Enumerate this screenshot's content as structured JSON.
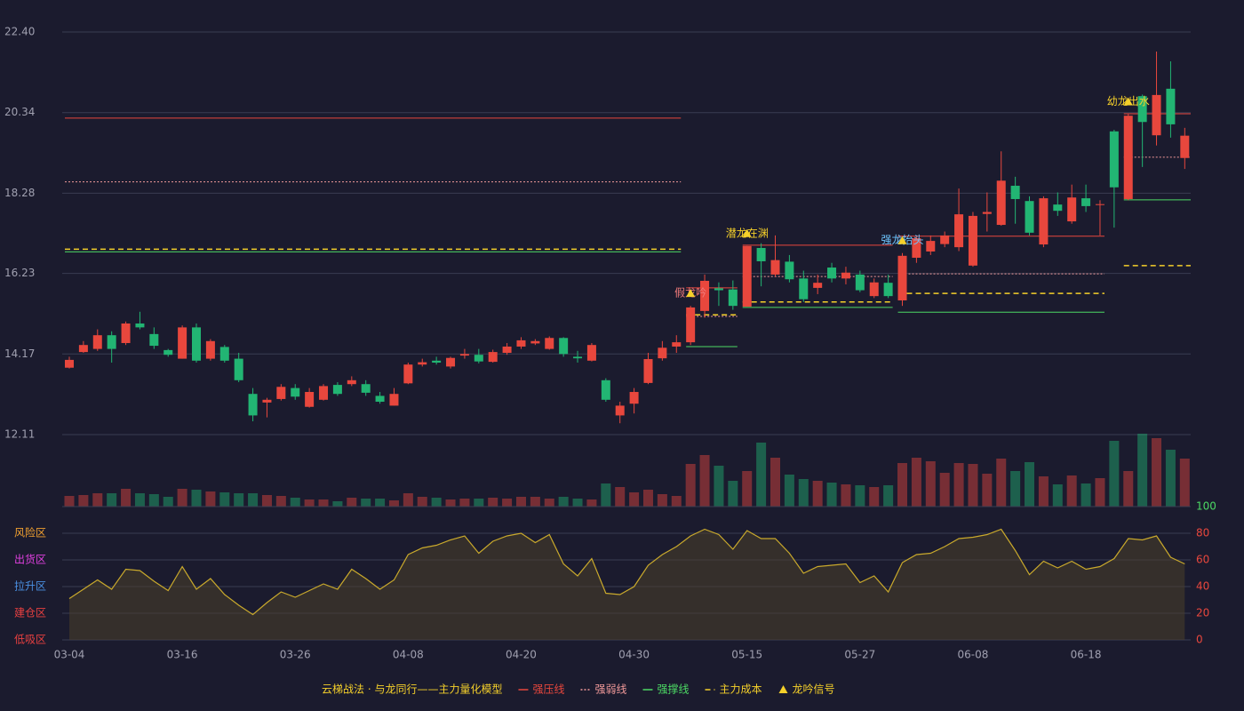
{
  "chart_data": [
    {
      "type": "candlestick",
      "title": "云梯战法 · 与龙同行——主力量化模型",
      "categories": [
        "03-04",
        null,
        null,
        null,
        null,
        null,
        null,
        null,
        "03-16",
        null,
        null,
        null,
        null,
        null,
        null,
        null,
        "03-26",
        null,
        null,
        null,
        null,
        null,
        null,
        null,
        "04-08",
        null,
        null,
        null,
        null,
        null,
        null,
        null,
        "04-20",
        null,
        null,
        null,
        null,
        null,
        null,
        null,
        "04-30",
        null,
        null,
        null,
        null,
        null,
        null,
        null,
        "05-15",
        null,
        null,
        null,
        null,
        null,
        null,
        null,
        "05-27",
        null,
        null,
        null,
        null,
        null,
        null,
        null,
        "06-08",
        null,
        null,
        null,
        null,
        null,
        null,
        null,
        "06-18",
        null,
        null,
        null,
        null,
        null,
        null,
        null
      ],
      "open": [
        13.82,
        14.22,
        14.3,
        14.65,
        14.45,
        14.95,
        14.68,
        14.27,
        14.05,
        14.85,
        14.05,
        14.35,
        14.05,
        13.15,
        12.93,
        13.02,
        13.3,
        12.82,
        13.0,
        13.38,
        13.4,
        13.4,
        13.1,
        12.85,
        13.42,
        13.9,
        14.0,
        13.85,
        14.13,
        14.15,
        13.97,
        14.2,
        14.36,
        14.44,
        14.3,
        14.58,
        14.1,
        14.0,
        13.5,
        12.6,
        12.9,
        13.43,
        14.06,
        14.36,
        14.47,
        15.27,
        15.85,
        15.82,
        15.38,
        16.88,
        16.2,
        16.53,
        16.1,
        15.86,
        16.38,
        16.1,
        16.2,
        15.65,
        15.99,
        15.54,
        16.63,
        16.79,
        16.98,
        16.9,
        16.43,
        17.75,
        17.47,
        18.47,
        18.08,
        16.97,
        17.99,
        17.56,
        18.15,
        17.98,
        19.86,
        18.13,
        20.76,
        19.76,
        20.95,
        19.18
      ],
      "close": [
        14.02,
        14.4,
        14.65,
        14.3,
        14.95,
        14.85,
        14.38,
        14.15,
        14.85,
        14.0,
        14.5,
        14.0,
        13.5,
        12.6,
        13.0,
        13.33,
        13.08,
        13.2,
        13.35,
        13.15,
        13.5,
        13.18,
        12.95,
        13.15,
        13.9,
        13.96,
        13.95,
        14.07,
        14.17,
        13.98,
        14.22,
        14.36,
        14.52,
        14.5,
        14.58,
        14.17,
        14.06,
        14.4,
        13.0,
        12.85,
        13.2,
        14.04,
        14.33,
        14.47,
        15.36,
        16.04,
        15.8,
        15.4,
        16.93,
        16.54,
        16.57,
        16.08,
        15.57,
        15.99,
        16.1,
        16.25,
        15.8,
        16.0,
        15.65,
        16.68,
        17.13,
        17.06,
        17.2,
        17.74,
        17.7,
        17.8,
        18.6,
        18.13,
        17.27,
        18.15,
        17.83,
        18.17,
        17.95,
        18.0,
        18.43,
        20.26,
        20.1,
        20.79,
        20.04,
        19.75
      ],
      "high": [
        14.1,
        14.5,
        14.8,
        14.75,
        15.0,
        15.25,
        14.85,
        14.3,
        14.9,
        14.95,
        14.55,
        14.4,
        14.2,
        13.3,
        13.05,
        13.4,
        13.4,
        13.3,
        13.4,
        13.45,
        13.6,
        13.5,
        13.2,
        13.3,
        13.95,
        14.05,
        14.1,
        14.1,
        14.3,
        14.3,
        14.28,
        14.45,
        14.6,
        14.55,
        14.62,
        14.6,
        14.25,
        14.45,
        13.55,
        12.95,
        13.3,
        14.2,
        14.5,
        14.65,
        15.4,
        16.2,
        16.0,
        16.05,
        16.93,
        17.0,
        17.2,
        16.7,
        16.3,
        16.2,
        16.5,
        16.4,
        16.3,
        16.1,
        16.2,
        16.75,
        17.2,
        17.2,
        17.3,
        18.4,
        17.8,
        18.3,
        19.35,
        18.7,
        18.2,
        18.2,
        18.3,
        18.5,
        18.5,
        18.1,
        19.9,
        20.3,
        20.8,
        21.9,
        21.65,
        19.95
      ],
      "low": [
        13.8,
        14.2,
        14.25,
        13.95,
        14.4,
        14.8,
        14.3,
        14.1,
        14.05,
        13.95,
        14.0,
        13.95,
        13.45,
        12.45,
        12.55,
        12.98,
        13.0,
        12.8,
        12.98,
        13.1,
        13.35,
        13.1,
        12.9,
        12.85,
        13.4,
        13.85,
        13.9,
        13.8,
        14.05,
        13.93,
        13.95,
        14.15,
        14.3,
        14.4,
        14.28,
        14.1,
        13.95,
        13.98,
        12.95,
        12.4,
        12.65,
        13.4,
        14.0,
        14.2,
        14.4,
        15.1,
        15.4,
        15.3,
        15.38,
        15.9,
        16.15,
        16.0,
        15.5,
        15.7,
        16.0,
        15.95,
        15.75,
        15.6,
        15.6,
        15.4,
        16.5,
        16.7,
        16.9,
        16.8,
        16.4,
        17.3,
        17.45,
        17.5,
        17.2,
        16.9,
        17.7,
        17.5,
        17.8,
        17.2,
        17.4,
        18.1,
        18.95,
        19.5,
        19.7,
        18.9
      ],
      "up_color": "#e8473d",
      "down_color": "#22b573",
      "ylim": [
        12.11,
        22.4
      ],
      "yticks": [
        {
          "value": 22.4,
          "label": "22.40"
        },
        20.34,
        18.28,
        16.23,
        14.17,
        12.11
      ],
      "grid": true,
      "level_segments": [
        [
          0,
          43
        ],
        [
          44,
          47
        ],
        [
          48,
          58
        ],
        [
          59,
          73
        ],
        [
          75,
          79
        ]
      ],
      "level_series": [
        {
          "name": "强压线",
          "color": "#e8473d",
          "style": "solid",
          "values": [
            20.2,
            15.86,
            16.95,
            17.18,
            20.31
          ]
        },
        {
          "name": "强弱线",
          "color": "#f29a9a",
          "style": "dot",
          "values": [
            18.57,
            15.13,
            16.15,
            16.22,
            19.2
          ]
        },
        {
          "name": "强撑线",
          "color": "#4cd964",
          "style": "solid",
          "values": [
            16.78,
            14.36,
            15.36,
            15.24,
            18.11
          ]
        },
        {
          "name": "主力成本",
          "color": "#f5d02a",
          "style": "dash",
          "values": [
            16.85,
            15.17,
            15.5,
            15.72,
            16.43
          ]
        }
      ],
      "signal_legend": {
        "name": "龙吟信号",
        "color": "#f5d02a"
      },
      "signals": [
        {
          "label": "假龙吟",
          "index": 44,
          "color": "#f07a7a"
        },
        {
          "label": "潜龙在渊",
          "index": 48,
          "color": "#f5d02a"
        },
        {
          "label": "强龙抬头",
          "index": 59,
          "color": "#6ec6ff"
        },
        {
          "label": "幼龙出水",
          "index": 75,
          "color": "#f5d02a"
        }
      ]
    },
    {
      "type": "volume",
      "values": [
        12,
        13,
        15,
        15,
        20,
        15,
        14,
        11,
        20,
        19,
        17,
        16,
        15,
        15,
        13,
        12,
        10,
        8,
        8,
        6,
        10,
        9,
        9,
        7,
        15,
        11,
        10,
        8,
        9,
        9,
        10,
        9,
        11,
        11,
        9,
        11,
        9,
        8,
        26,
        22,
        16,
        19,
        14,
        12,
        48,
        58,
        46,
        29,
        40,
        72,
        55,
        36,
        31,
        29,
        27,
        25,
        24,
        22,
        24,
        49,
        55,
        51,
        38,
        49,
        48,
        37,
        54,
        40,
        50,
        34,
        25,
        35,
        26,
        32,
        74,
        40,
        82,
        77,
        64,
        54
      ]
    },
    {
      "type": "area",
      "color": "#c9a92c",
      "values": [
        31,
        38,
        45,
        38,
        53,
        52,
        44,
        37,
        55,
        38,
        46,
        34,
        26,
        19,
        28,
        36,
        32,
        37,
        42,
        38,
        53,
        46,
        38,
        45,
        64,
        69,
        71,
        75,
        78,
        65,
        74,
        78,
        80,
        73,
        79,
        57,
        48,
        61,
        35,
        34,
        40,
        56,
        64,
        70,
        78,
        83,
        79,
        68,
        82,
        76,
        76,
        65,
        50,
        55,
        56,
        57,
        43,
        48,
        36,
        58,
        64,
        65,
        70,
        76,
        77,
        79,
        83,
        67,
        49,
        59,
        54,
        59,
        53,
        55,
        61,
        76,
        75,
        78,
        62,
        57
      ],
      "ylim": [
        0,
        100
      ],
      "yticks": [
        0,
        20,
        40,
        60,
        80,
        100
      ],
      "ytick_colors": [
        "#e8473d",
        "#e8473d",
        "#e8473d",
        "#e8473d",
        "#e8473d",
        "#4cd964"
      ],
      "zones": [
        {
          "label": "风险区",
          "value": 80,
          "color": "#f0a030"
        },
        {
          "label": "出货区",
          "value": 60,
          "color": "#e040e0"
        },
        {
          "label": "拉升区",
          "value": 40,
          "color": "#4a90e2"
        },
        {
          "label": "建仓区",
          "value": 20,
          "color": "#e84040"
        },
        {
          "label": "低吸区",
          "value": 0,
          "color": "#e84040"
        }
      ]
    }
  ]
}
